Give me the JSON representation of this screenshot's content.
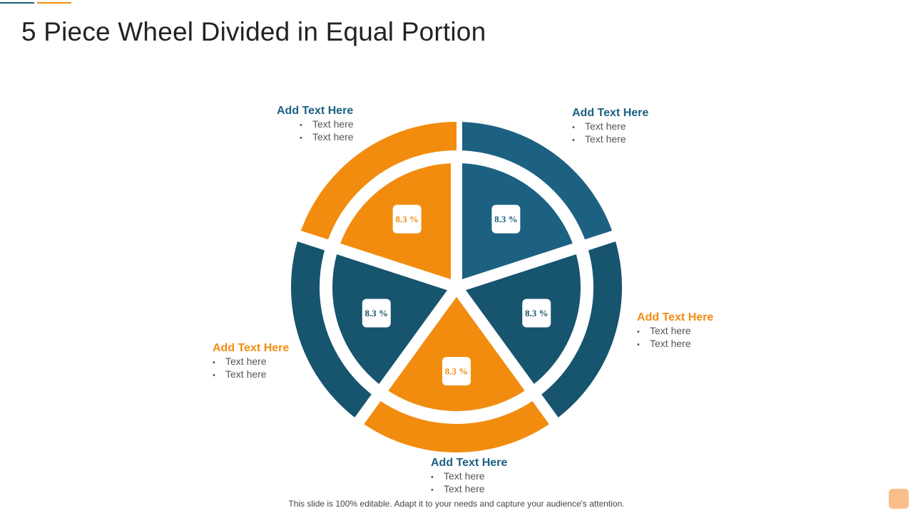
{
  "title": "5 Piece Wheel Divided in Equal Portion",
  "footer": "This slide is 100% editable. Adapt it to your needs and capture your audience's attention.",
  "colors": {
    "blue": "#1c6182",
    "dark_blue": "#17546e",
    "orange": "#f28c0f",
    "title_line_blue": "#1c6182",
    "title_line_orange": "#f28c0f"
  },
  "segments": [
    {
      "label": "8.3 %",
      "color": "#1c6182"
    },
    {
      "label": "8.3 %",
      "color": "#17546e"
    },
    {
      "label": "8.3 %",
      "color": "#f28c0f"
    },
    {
      "label": "8.3 %",
      "color": "#17546e"
    },
    {
      "label": "8.3 %",
      "color": "#f28c0f"
    }
  ],
  "callouts": [
    {
      "heading": "Add Text Here",
      "items": [
        "Text here",
        "Text here"
      ],
      "color": "#1c6182"
    },
    {
      "heading": "Add Text Here",
      "items": [
        "Text here",
        "Text here"
      ],
      "color": "#1c6182"
    },
    {
      "heading": "Add Text Here",
      "items": [
        "Text here",
        "Text here"
      ],
      "color": "#f28c0f"
    },
    {
      "heading": "Add Text Here",
      "items": [
        "Text here",
        "Text here"
      ],
      "color": "#1c6182"
    },
    {
      "heading": "Add Text Here",
      "items": [
        "Text here",
        "Text here"
      ],
      "color": "#f28c0f"
    }
  ]
}
